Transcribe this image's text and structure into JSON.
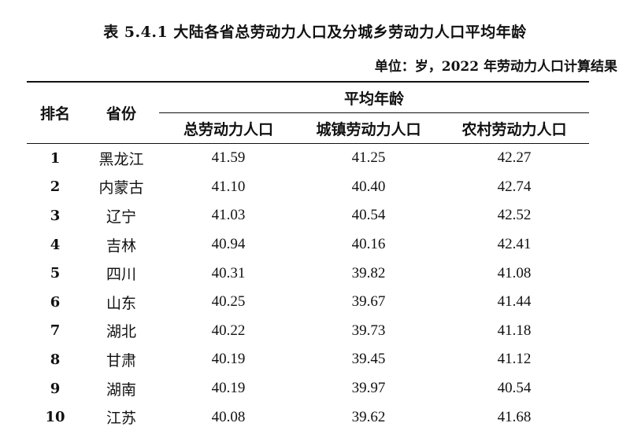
{
  "title": "表 5.4.1 大陆各省总劳动力人口及分城乡劳动力人口平均年龄",
  "unit_note": "单位：岁，2022 年劳动力人口计算结果",
  "headers": {
    "rank": "排名",
    "province": "省份",
    "avg_age": "平均年龄",
    "total": "总劳动力人口",
    "urban": "城镇劳动力人口",
    "rural": "农村劳动力人口"
  },
  "rows": [
    {
      "rank": "1",
      "province": "黑龙江",
      "total": "41.59",
      "urban": "41.25",
      "rural": "42.27"
    },
    {
      "rank": "2",
      "province": "内蒙古",
      "total": "41.10",
      "urban": "40.40",
      "rural": "42.74"
    },
    {
      "rank": "3",
      "province": "辽宁",
      "total": "41.03",
      "urban": "40.54",
      "rural": "42.52"
    },
    {
      "rank": "4",
      "province": "吉林",
      "total": "40.94",
      "urban": "40.16",
      "rural": "42.41"
    },
    {
      "rank": "5",
      "province": "四川",
      "total": "40.31",
      "urban": "39.82",
      "rural": "41.08"
    },
    {
      "rank": "6",
      "province": "山东",
      "total": "40.25",
      "urban": "39.67",
      "rural": "41.44"
    },
    {
      "rank": "7",
      "province": "湖北",
      "total": "40.22",
      "urban": "39.73",
      "rural": "41.18"
    },
    {
      "rank": "8",
      "province": "甘肃",
      "total": "40.19",
      "urban": "39.45",
      "rural": "41.12"
    },
    {
      "rank": "9",
      "province": "湖南",
      "total": "40.19",
      "urban": "39.97",
      "rural": "40.54"
    },
    {
      "rank": "10",
      "province": "江苏",
      "total": "40.08",
      "urban": "39.62",
      "rural": "41.68"
    }
  ]
}
